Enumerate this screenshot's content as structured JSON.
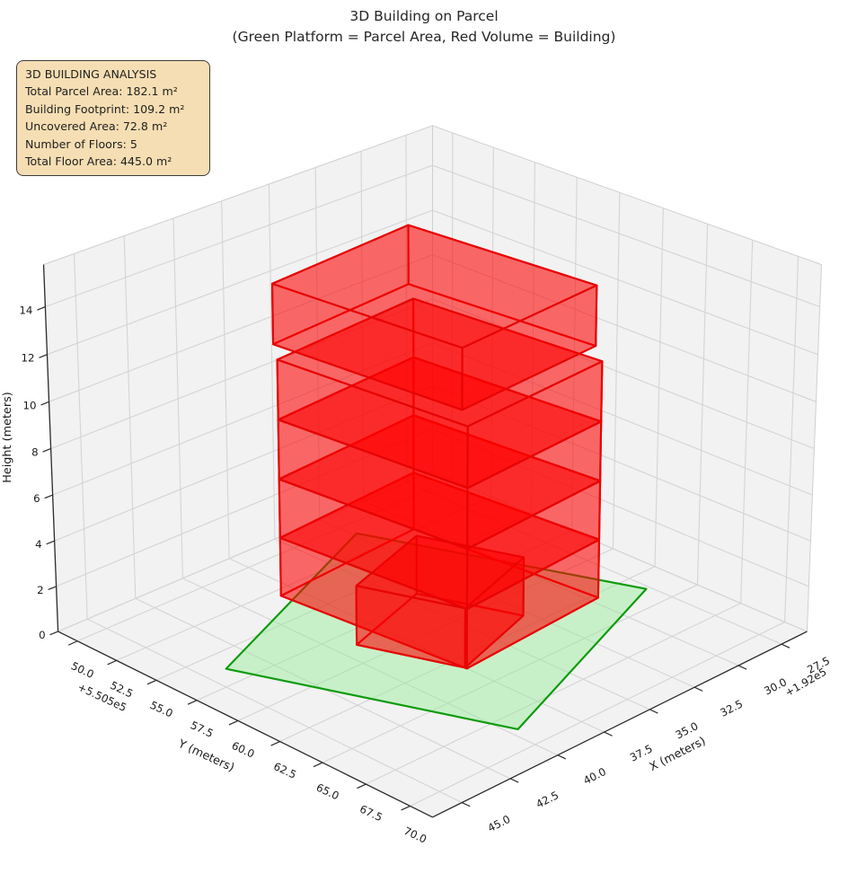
{
  "title": {
    "line1": "3D Building on Parcel",
    "line2": "(Green Platform = Parcel Area, Red Volume = Building)"
  },
  "info_box": {
    "lines": [
      "3D BUILDING ANALYSIS",
      "Total Parcel Area: 182.1 m²",
      "Building Footprint: 109.2 m²",
      "Uncovered Area: 72.8 m²",
      "Number of Floors: 5",
      "Total Floor Area: 445.0 m²"
    ],
    "background": "#f5deb3",
    "border_color": "#3c3c3c"
  },
  "chart_data": {
    "type": "3d-building-plot",
    "title": "3D Building on Parcel",
    "subtitle": "(Green Platform = Parcel Area, Red Volume = Building)",
    "xlabel": "X (meters)",
    "ylabel": "Y (meters)",
    "zlabel": "Height (meters)",
    "x_offset_text": "+1.92e5",
    "y_offset_text": "+5.505e5",
    "xlim": [
      26.0,
      46.5
    ],
    "ylim": [
      48.75,
      71.25
    ],
    "zlim": [
      0,
      15.75
    ],
    "x_ticks": [
      27.5,
      30.0,
      32.5,
      35.0,
      37.5,
      40.0,
      42.5,
      45.0
    ],
    "x_tick_labels": [
      "27.5",
      "30.0",
      "32.5",
      "35.0",
      "37.5",
      "40.0",
      "42.5",
      "45.0"
    ],
    "y_ticks": [
      50.0,
      52.5,
      55.0,
      57.5,
      60.0,
      62.5,
      65.0,
      67.5,
      70.0
    ],
    "y_tick_labels": [
      "50.0",
      "52.5",
      "55.0",
      "57.5",
      "60.0",
      "62.5",
      "65.0",
      "67.5",
      "70.0"
    ],
    "z_ticks": [
      0,
      2,
      4,
      6,
      8,
      10,
      12,
      14
    ],
    "z_tick_labels": [
      "0",
      "2",
      "4",
      "6",
      "8",
      "10",
      "12",
      "14"
    ],
    "parcel": {
      "area_m2": 182.1,
      "corners_xy": [
        [
          32.3,
          50.9
        ],
        [
          44.0,
          56.3
        ],
        [
          39.6,
          68.6
        ],
        [
          27.7,
          63.7
        ]
      ],
      "z": 0
    },
    "building": {
      "footprint_m2": 109.2,
      "uncovered_m2": 72.8,
      "num_floors": 5,
      "total_floor_area_m2": 445.0,
      "floor_height_m": 2.6,
      "main_block_footprint_xy": [
        [
          38.3,
          53.0
        ],
        [
          37.5,
          63.4
        ],
        [
          29.6,
          62.8
        ],
        [
          30.4,
          52.4
        ]
      ],
      "main_block_floors": 4,
      "top_floor_offset_xy": [
        -0.9,
        -1.3
      ],
      "extension_footprint_xy": [
        [
          39.1,
          58.6
        ],
        [
          37.5,
          63.3
        ],
        [
          32.8,
          61.7
        ],
        [
          34.4,
          57.0
        ]
      ],
      "extension_floors": 1
    },
    "legend_position": "none",
    "grid": true,
    "colors": {
      "building_face": "rgba(255,0,0,0.35)",
      "building_edge": "#e60404",
      "parcel_face": "rgba(144,238,144,0.42)",
      "parcel_edge": "#0f9b0f",
      "pane": "#f2f2f2",
      "grid_line": "#d4d4d4",
      "axis_line": "#2b2b2b",
      "tick_text": "#1a1a1a"
    }
  }
}
